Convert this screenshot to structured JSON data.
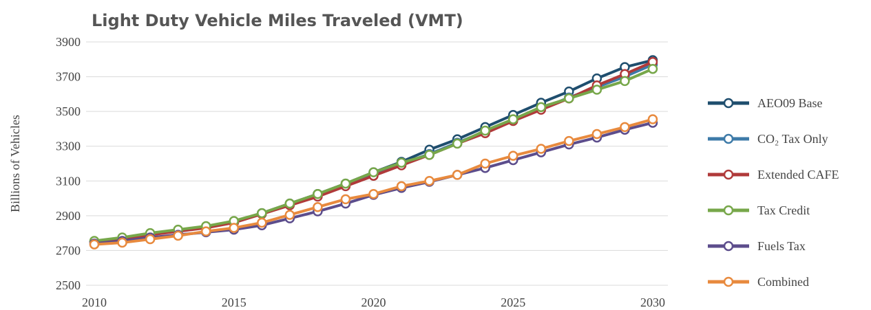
{
  "chart_data": {
    "type": "line",
    "title": "Light Duty Vehicle Miles Traveled (VMT)",
    "y_label": "Billions of Vehicles",
    "x": [
      2010,
      2011,
      2012,
      2013,
      2014,
      2015,
      2016,
      2017,
      2018,
      2019,
      2020,
      2021,
      2022,
      2023,
      2024,
      2025,
      2026,
      2027,
      2028,
      2029,
      2030
    ],
    "xlim": [
      2010,
      2030
    ],
    "xticks": [
      2010,
      2015,
      2020,
      2025,
      2030
    ],
    "ylim": [
      2500,
      3900
    ],
    "yticks": [
      2500,
      2700,
      2900,
      3100,
      3300,
      3500,
      3700,
      3900
    ],
    "grid": true,
    "legend": "right",
    "series": [
      {
        "name": "AEO09 Base",
        "color": "#1f4e6e",
        "values": [
          2750,
          2770,
          2795,
          2815,
          2835,
          2865,
          2915,
          2970,
          3025,
          3085,
          3150,
          3210,
          3280,
          3340,
          3410,
          3480,
          3550,
          3615,
          3690,
          3755,
          3795
        ]
      },
      {
        "name": "CO₂ Tax Only",
        "color": "#3d7aa8",
        "values": [
          2750,
          2768,
          2792,
          2812,
          2832,
          2862,
          2912,
          2965,
          3020,
          3080,
          3145,
          3200,
          3255,
          3320,
          3385,
          3450,
          3515,
          3580,
          3640,
          3700,
          3770
        ]
      },
      {
        "name": "Extended CAFE",
        "color": "#b03a3a",
        "values": [
          2750,
          2765,
          2790,
          2810,
          2830,
          2860,
          2910,
          2960,
          3010,
          3070,
          3130,
          3190,
          3250,
          3315,
          3375,
          3445,
          3510,
          3575,
          3650,
          3715,
          3785
        ]
      },
      {
        "name": "Tax Credit",
        "color": "#77a74a",
        "values": [
          2755,
          2775,
          2800,
          2820,
          2840,
          2870,
          2915,
          2970,
          3025,
          3085,
          3150,
          3205,
          3250,
          3315,
          3390,
          3455,
          3525,
          3575,
          3625,
          3675,
          3745
        ]
      },
      {
        "name": "Fuels Tax",
        "color": "#5c4d8c",
        "values": [
          2740,
          2755,
          2775,
          2790,
          2805,
          2820,
          2845,
          2885,
          2925,
          2970,
          3020,
          3060,
          3095,
          3135,
          3175,
          3220,
          3265,
          3310,
          3350,
          3395,
          3435
        ]
      },
      {
        "name": "Combined",
        "color": "#e88a3e",
        "values": [
          2735,
          2745,
          2765,
          2785,
          2810,
          2830,
          2860,
          2905,
          2950,
          2995,
          3025,
          3070,
          3100,
          3135,
          3200,
          3245,
          3285,
          3330,
          3370,
          3410,
          3455
        ]
      }
    ]
  }
}
